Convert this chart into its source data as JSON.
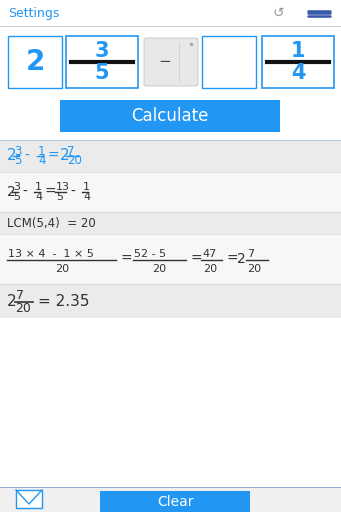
{
  "bg_color": "#ffffff",
  "settings_text": "Settings",
  "settings_color": "#2196F3",
  "blue": "#2196F3",
  "dark_text": "#333333",
  "button_blue": "#2196F3",
  "button_text_color": "#ffffff",
  "calculate_text": "Calculate",
  "clear_text": "Clear",
  "row1_bg": "#ebebeb",
  "row2_bg": "#f7f7f7",
  "row3_bg": "#ebebeb",
  "row4_bg": "#f7f7f7",
  "row5_bg": "#ebebeb",
  "footer_bg": "#f0f0f0",
  "sep_color": "#cccccc",
  "op_btn_color": "#e0e0e0",
  "op_btn_edge": "#cccccc"
}
